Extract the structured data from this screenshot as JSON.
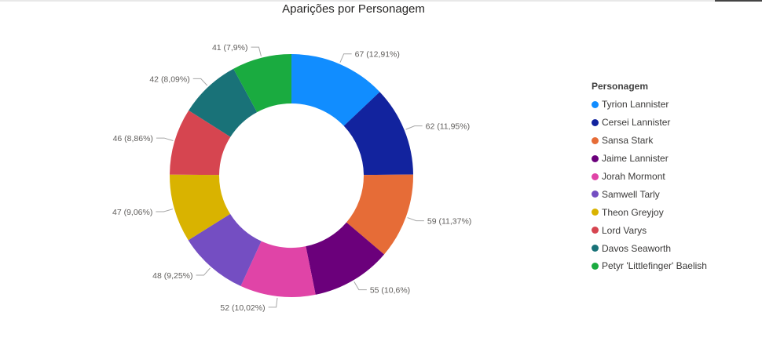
{
  "chart_data": {
    "type": "pie",
    "title": "Aparições por Personagem",
    "legend_title": "Personagem",
    "legend_position": "right",
    "donut": true,
    "series": [
      {
        "name": "Tyrion Lannister",
        "value": 67,
        "label": "67 (12,91%)",
        "color": "#118DFF"
      },
      {
        "name": "Cersei Lannister",
        "value": 62,
        "label": "62 (11,95%)",
        "color": "#12239E"
      },
      {
        "name": "Sansa Stark",
        "value": 59,
        "label": "59 (11,37%)",
        "color": "#E66C37"
      },
      {
        "name": "Jaime Lannister",
        "value": 55,
        "label": "55 (10,6%)",
        "color": "#6B007B"
      },
      {
        "name": "Jorah Mormont",
        "value": 52,
        "label": "52 (10,02%)",
        "color": "#E044A7"
      },
      {
        "name": "Samwell Tarly",
        "value": 48,
        "label": "48 (9,25%)",
        "color": "#744EC2"
      },
      {
        "name": "Theon Greyjoy",
        "value": 47,
        "label": "47 (9,06%)",
        "color": "#D9B300"
      },
      {
        "name": "Lord Varys",
        "value": 46,
        "label": "46 (8,86%)",
        "color": "#D64550"
      },
      {
        "name": "Davos Seaworth",
        "value": 42,
        "label": "42 (8,09%)",
        "color": "#197278"
      },
      {
        "name": "Petyr 'Littlefinger' Baelish",
        "value": 41,
        "label": "41 (7,9%)",
        "color": "#1AAB40"
      }
    ]
  }
}
